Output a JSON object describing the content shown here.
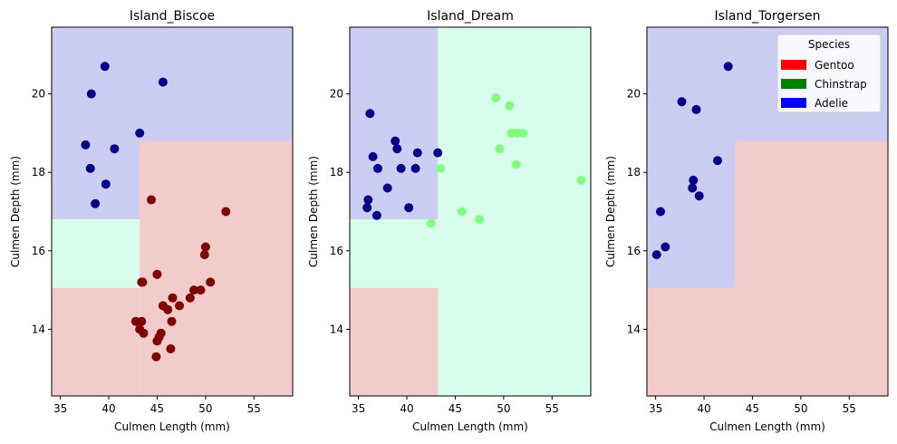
{
  "chart_data": [
    {
      "type": "scatter",
      "title": "Island_Biscoe",
      "xlabel": "Culmen Length (mm)",
      "ylabel": "Culmen Depth (mm)",
      "xlim": [
        34.1,
        59.0
      ],
      "ylim": [
        12.3,
        21.7
      ],
      "xticks": [
        35,
        40,
        45,
        50,
        55
      ],
      "yticks": [
        14,
        16,
        18,
        20
      ],
      "regions": [
        {
          "class": "Adelie",
          "color": "#cccdf3",
          "x": [
            34.1,
            59.0
          ],
          "y": [
            16.8,
            21.7
          ]
        },
        {
          "class": "Gentoo",
          "color": "#f2cbcb",
          "x": [
            43.2,
            59.0
          ],
          "y": [
            12.3,
            18.8
          ]
        },
        {
          "class": "Chinstrap",
          "color": "#d8fdec",
          "x": [
            34.1,
            43.2
          ],
          "y": [
            15.05,
            16.8
          ]
        },
        {
          "class": "Gentoo",
          "color": "#f2cbcb",
          "x": [
            34.1,
            43.2
          ],
          "y": [
            12.3,
            15.05
          ]
        }
      ],
      "series": [
        {
          "class": "Adelie",
          "color": "#00008b",
          "points": [
            [
              39.6,
              20.7
            ],
            [
              45.6,
              20.3
            ],
            [
              38.2,
              20.0
            ],
            [
              43.2,
              19.0
            ],
            [
              37.6,
              18.7
            ],
            [
              40.6,
              18.6
            ],
            [
              38.1,
              18.1
            ],
            [
              39.7,
              17.7
            ],
            [
              38.6,
              17.2
            ]
          ]
        },
        {
          "class": "Gentoo",
          "color": "#800000",
          "points": [
            [
              44.4,
              17.3
            ],
            [
              52.1,
              17.0
            ],
            [
              50.0,
              16.1
            ],
            [
              49.9,
              15.9
            ],
            [
              45.0,
              15.4
            ],
            [
              43.4,
              15.2
            ],
            [
              43.5,
              15.2
            ],
            [
              50.5,
              15.2
            ],
            [
              48.8,
              15.0
            ],
            [
              49.5,
              15.0
            ],
            [
              46.6,
              14.8
            ],
            [
              48.4,
              14.8
            ],
            [
              45.6,
              14.6
            ],
            [
              47.3,
              14.6
            ],
            [
              46.1,
              14.5
            ],
            [
              42.8,
              14.2
            ],
            [
              43.4,
              14.2
            ],
            [
              46.5,
              14.2
            ],
            [
              43.2,
              14.0
            ],
            [
              43.6,
              13.9
            ],
            [
              45.4,
              13.9
            ],
            [
              45.2,
              13.8
            ],
            [
              45.0,
              13.7
            ],
            [
              46.4,
              13.5
            ],
            [
              44.9,
              13.3
            ]
          ]
        }
      ]
    },
    {
      "type": "scatter",
      "title": "Island_Dream",
      "xlabel": "Culmen Length (mm)",
      "ylabel": "Culmen Depth (mm)",
      "xlim": [
        34.1,
        59.0
      ],
      "ylim": [
        12.3,
        21.7
      ],
      "xticks": [
        35,
        40,
        45,
        50,
        55
      ],
      "yticks": [
        14,
        16,
        18,
        20
      ],
      "regions": [
        {
          "class": "Chinstrap",
          "color": "#d8fdec",
          "x": [
            34.1,
            59.0
          ],
          "y": [
            12.3,
            21.7
          ]
        },
        {
          "class": "Adelie",
          "color": "#cccdf3",
          "x": [
            34.1,
            43.2
          ],
          "y": [
            16.8,
            21.7
          ]
        },
        {
          "class": "Gentoo",
          "color": "#f2cbcb",
          "x": [
            34.1,
            43.2
          ],
          "y": [
            12.3,
            15.05
          ]
        }
      ],
      "series": [
        {
          "class": "Adelie",
          "color": "#00008b",
          "points": [
            [
              36.2,
              19.5
            ],
            [
              38.8,
              18.8
            ],
            [
              39.0,
              18.6
            ],
            [
              36.5,
              18.4
            ],
            [
              41.1,
              18.5
            ],
            [
              43.2,
              18.5
            ],
            [
              37.0,
              18.1
            ],
            [
              39.4,
              18.1
            ],
            [
              40.9,
              18.1
            ],
            [
              38.0,
              17.6
            ],
            [
              36.0,
              17.3
            ],
            [
              40.2,
              17.1
            ],
            [
              35.9,
              17.1
            ],
            [
              36.9,
              16.9
            ]
          ]
        },
        {
          "class": "Chinstrap",
          "color": "#80ff80",
          "points": [
            [
              49.2,
              19.9
            ],
            [
              50.6,
              19.7
            ],
            [
              50.8,
              19.0
            ],
            [
              51.4,
              19.0
            ],
            [
              52.0,
              19.0
            ],
            [
              49.6,
              18.6
            ],
            [
              51.3,
              18.2
            ],
            [
              43.5,
              18.1
            ],
            [
              58.0,
              17.8
            ],
            [
              45.7,
              17.0
            ],
            [
              47.5,
              16.8
            ],
            [
              42.5,
              16.7
            ]
          ]
        }
      ]
    },
    {
      "type": "scatter",
      "title": "Island_Torgersen",
      "xlabel": "Culmen Length (mm)",
      "ylabel": "Culmen Depth (mm)",
      "xlim": [
        34.1,
        59.0
      ],
      "ylim": [
        12.3,
        21.7
      ],
      "xticks": [
        35,
        40,
        45,
        50,
        55
      ],
      "yticks": [
        14,
        16,
        18,
        20
      ],
      "regions": [
        {
          "class": "Adelie",
          "color": "#cccdf3",
          "x": [
            34.1,
            59.0
          ],
          "y": [
            12.3,
            21.7
          ]
        },
        {
          "class": "Gentoo",
          "color": "#f2cbcb",
          "x": [
            43.2,
            59.0
          ],
          "y": [
            12.3,
            18.8
          ]
        },
        {
          "class": "Gentoo",
          "color": "#f2cbcb",
          "x": [
            34.1,
            43.2
          ],
          "y": [
            12.3,
            15.05
          ]
        }
      ],
      "series": [
        {
          "class": "Adelie",
          "color": "#00008b",
          "points": [
            [
              42.5,
              20.7
            ],
            [
              37.7,
              19.8
            ],
            [
              39.2,
              19.6
            ],
            [
              41.4,
              18.3
            ],
            [
              38.9,
              17.8
            ],
            [
              38.8,
              17.6
            ],
            [
              39.5,
              17.4
            ],
            [
              35.5,
              17.0
            ],
            [
              36.0,
              16.1
            ],
            [
              35.1,
              15.9
            ]
          ]
        }
      ],
      "legend": {
        "title": "Species",
        "position": "top-right",
        "entries": [
          {
            "label": "Gentoo",
            "color": "#ff0000"
          },
          {
            "label": "Chinstrap",
            "color": "#008000"
          },
          {
            "label": "Adelie",
            "color": "#0000ff"
          }
        ]
      }
    }
  ]
}
